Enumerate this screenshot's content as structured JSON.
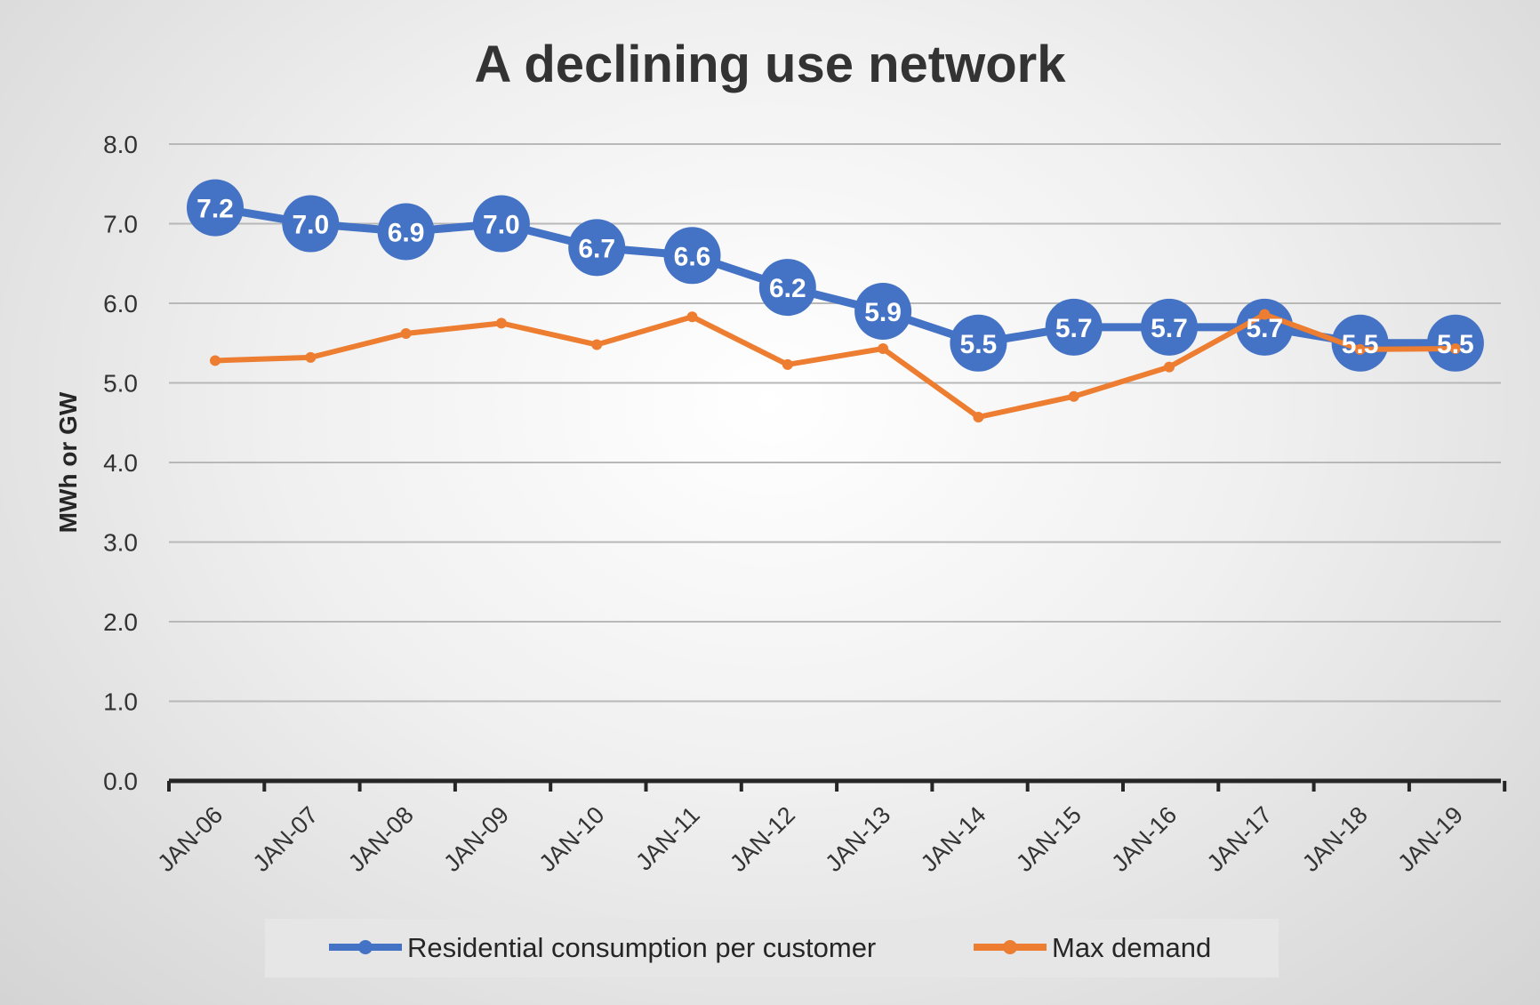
{
  "chart_data": {
    "type": "line",
    "title": "A declining use network",
    "ylabel": "MWh or GW",
    "xlabel": "",
    "ylim": [
      0,
      8
    ],
    "yticks": [
      "0.0",
      "1.0",
      "2.0",
      "3.0",
      "4.0",
      "5.0",
      "6.0",
      "7.0",
      "8.0"
    ],
    "grid": true,
    "legend_position": "bottom",
    "categories": [
      "JAN-06",
      "JAN-07",
      "JAN-08",
      "JAN-09",
      "JAN-10",
      "JAN-11",
      "JAN-12",
      "JAN-13",
      "JAN-14",
      "JAN-15",
      "JAN-16",
      "JAN-17",
      "JAN-18",
      "JAN-19"
    ],
    "series": [
      {
        "name": "Residential consumption per customer",
        "color": "#4472c4",
        "data_labels": true,
        "values": [
          7.2,
          7.0,
          6.9,
          7.0,
          6.7,
          6.6,
          6.2,
          5.9,
          5.5,
          5.7,
          5.7,
          5.7,
          5.5,
          5.5
        ]
      },
      {
        "name": "Max demand",
        "color": "#ed7d31",
        "data_labels": false,
        "values": [
          5.28,
          5.32,
          5.62,
          5.75,
          5.48,
          5.83,
          5.23,
          5.43,
          4.57,
          4.83,
          5.2,
          5.86,
          5.42,
          5.43
        ]
      }
    ]
  }
}
